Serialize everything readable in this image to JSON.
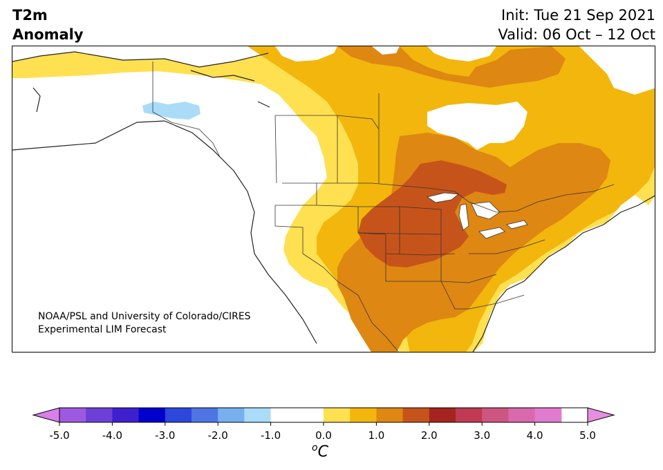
{
  "header": {
    "title_line1": "T2m",
    "title_line2": "Anomaly",
    "init": "Init: Tue 21 Sep 2021",
    "valid": "Valid: 06 Oct – 12 Oct"
  },
  "credit": {
    "line1": "NOAA/PSL and University of Colorado/CIRES",
    "line2": "Experimental LIM Forecast"
  },
  "colorbar": {
    "unit_base": "C",
    "unit_sup": "o",
    "ticks": [
      "-5.0",
      "-4.0",
      "-3.0",
      "-2.0",
      "-1.0",
      "0.0",
      "1.0",
      "2.0",
      "3.0",
      "4.0",
      "5.0"
    ],
    "colors": {
      "lt_m5": "#d97fe8",
      "m5_m45": "#9d5ae0",
      "m45_m4": "#6d3fd8",
      "m4_m35": "#3f20cf",
      "m35_m3": "#0000cc",
      "m3_m25": "#2d46dc",
      "m25_m2": "#4f75e4",
      "m2_m15": "#78b0ef",
      "m15_m1": "#aadcfa",
      "neutral": "#ffffff",
      "p05_p1": "#ffe050",
      "p1_p15": "#f2b60c",
      "p15_p2": "#de8712",
      "p2_p25": "#c6541a",
      "p25_p3": "#a62420",
      "p3_p35": "#bf3a52",
      "p35_p4": "#cd5680",
      "p4_p45": "#d968ad",
      "p45_p5": "#e07bcf",
      "gt_p5": "#e58fe0"
    }
  }
}
